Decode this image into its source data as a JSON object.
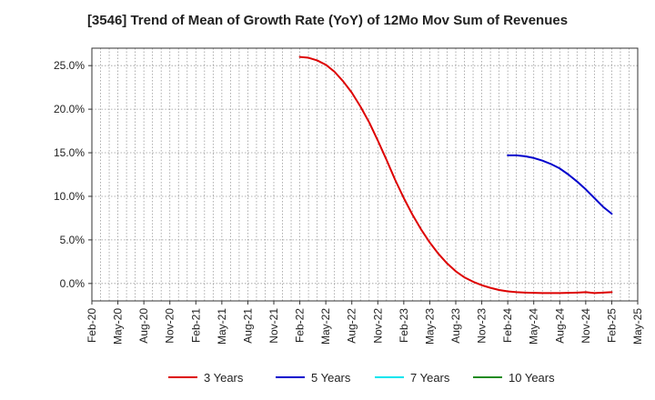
{
  "chart_data": {
    "type": "line",
    "title": "[3546]  Trend of Mean of Growth Rate (YoY) of 12Mo Mov Sum of Revenues",
    "xlabel": "",
    "ylabel": "",
    "ylim": [
      -2.0,
      27.0
    ],
    "y_ticks": [
      0,
      5,
      10,
      15,
      20,
      25
    ],
    "y_tick_labels": [
      "0.0%",
      "5.0%",
      "10.0%",
      "15.0%",
      "20.0%",
      "25.0%"
    ],
    "x_tick_labels": [
      "Feb-20",
      "May-20",
      "Aug-20",
      "Nov-20",
      "Feb-21",
      "May-21",
      "Aug-21",
      "Nov-21",
      "Feb-22",
      "May-22",
      "Aug-22",
      "Nov-22",
      "Feb-23",
      "May-23",
      "Aug-23",
      "Nov-23",
      "Feb-24",
      "May-24",
      "Aug-24",
      "Nov-24",
      "Feb-25",
      "May-25"
    ],
    "grid": true,
    "legend_position": "bottom",
    "series": [
      {
        "name": "3 Years",
        "color": "#dd0000",
        "x": [
          "Feb-22",
          "Mar-22",
          "Apr-22",
          "May-22",
          "Jun-22",
          "Jul-22",
          "Aug-22",
          "Sep-22",
          "Oct-22",
          "Nov-22",
          "Dec-22",
          "Jan-23",
          "Feb-23",
          "Mar-23",
          "Apr-23",
          "May-23",
          "Jun-23",
          "Jul-23",
          "Aug-23",
          "Sep-23",
          "Oct-23",
          "Nov-23",
          "Dec-23",
          "Jan-24",
          "Feb-24",
          "Mar-24",
          "Apr-24",
          "May-24",
          "Jun-24",
          "Jul-24",
          "Aug-24",
          "Sep-24",
          "Oct-24",
          "Nov-24",
          "Dec-24",
          "Jan-25",
          "Feb-25"
        ],
        "values": [
          26.0,
          25.9,
          25.6,
          25.1,
          24.3,
          23.2,
          21.9,
          20.3,
          18.5,
          16.4,
          14.2,
          11.9,
          9.8,
          7.9,
          6.2,
          4.7,
          3.4,
          2.3,
          1.4,
          0.7,
          0.2,
          -0.2,
          -0.5,
          -0.75,
          -0.9,
          -1.0,
          -1.05,
          -1.08,
          -1.1,
          -1.1,
          -1.1,
          -1.08,
          -1.05,
          -1.0,
          -1.1,
          -1.05,
          -1.0
        ]
      },
      {
        "name": "5 Years",
        "color": "#0000cc",
        "x": [
          "Feb-24",
          "Mar-24",
          "Apr-24",
          "May-24",
          "Jun-24",
          "Jul-24",
          "Aug-24",
          "Sep-24",
          "Oct-24",
          "Nov-24",
          "Dec-24",
          "Jan-25",
          "Feb-25"
        ],
        "values": [
          14.7,
          14.7,
          14.6,
          14.4,
          14.1,
          13.7,
          13.2,
          12.5,
          11.7,
          10.8,
          9.8,
          8.8,
          8.0
        ]
      },
      {
        "name": "7 Years",
        "color": "#00e5ee",
        "x": [],
        "values": []
      },
      {
        "name": "10 Years",
        "color": "#228b22",
        "x": [],
        "values": []
      }
    ]
  }
}
